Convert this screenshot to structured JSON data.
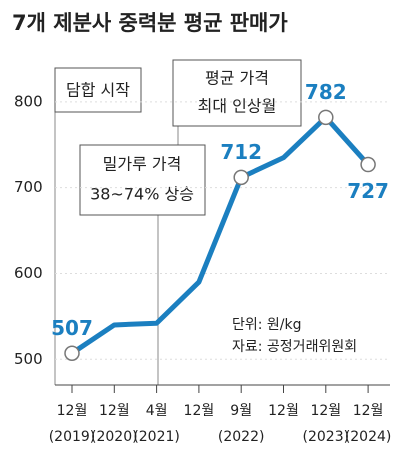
{
  "chart_data": {
    "type": "line",
    "title": "7개 제분사 중력분 평균 판매가",
    "categories": [
      "12월",
      "12월",
      "4월",
      "12월",
      "9월",
      "12월",
      "12월",
      "12월"
    ],
    "category_years": [
      "(2019)",
      "(2020)",
      "(2021)",
      null,
      "(2022)",
      null,
      "(2023)",
      "(2024)"
    ],
    "series": [
      {
        "name": "평균 판매가",
        "color": "#1b7fc0",
        "values": [
          507,
          540,
          542,
          590,
          712,
          735,
          782,
          727
        ],
        "labeled": [
          true,
          false,
          false,
          false,
          true,
          false,
          true,
          true
        ]
      }
    ],
    "ylim": [
      470,
      850
    ],
    "yticks": [
      500,
      600,
      700,
      800
    ],
    "grid": true,
    "annotations": [
      "담합 시작",
      "밀가루 가격",
      "38~74% 상승",
      "평균 가격",
      "최대 인상월"
    ],
    "notes": [
      "단위: 원/kg",
      "자료: 공정거래위원회"
    ]
  }
}
